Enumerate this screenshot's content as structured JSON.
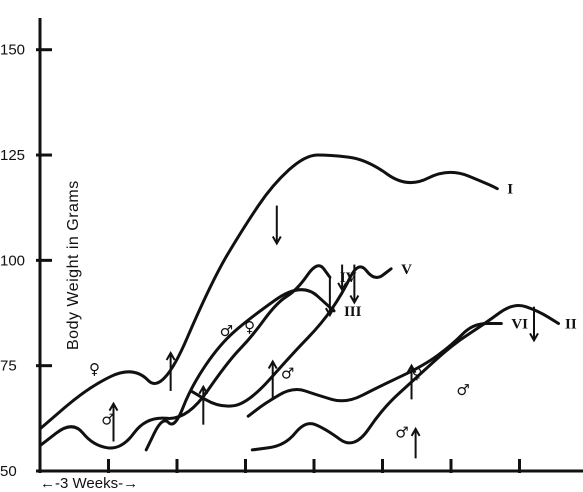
{
  "chart_data": {
    "type": "line",
    "title": "",
    "ylabel": "Body Weight in Grams",
    "xlabel": "←-3 Weeks-→",
    "ylim": [
      50,
      150
    ],
    "yticks": [
      "50",
      "75",
      "100",
      "125",
      "150"
    ],
    "x_unit_weeks": 3,
    "x_period_count": 8,
    "grid": false,
    "ink_color": "#111111",
    "series": [
      {
        "name": "I",
        "x": [
          0,
          1.2,
          2.3,
          3.0,
          4.2,
          5.0,
          5.7,
          6.5,
          7.1,
          8.0,
          9.0,
          10.0,
          11.0,
          11.2
        ],
        "y": [
          60,
          70,
          75,
          68,
          95,
          108,
          118,
          125,
          125,
          124,
          117,
          122,
          118,
          117
        ],
        "trim": 10
      },
      {
        "name": "IV",
        "x": [
          0,
          0.8,
          1.3,
          2.0,
          2.6,
          3.6,
          4.6,
          5.2,
          5.8,
          6.3,
          6.8,
          7.1
        ],
        "y": [
          56,
          62,
          56,
          55,
          63,
          62,
          76,
          82,
          90,
          93,
          100,
          96
        ]
      },
      {
        "name": "III",
        "x": [
          2.6,
          3.0,
          3.3,
          3.7,
          4.4,
          5.1,
          6.4,
          7.2
        ],
        "y": [
          55,
          63,
          60,
          70,
          80,
          86,
          95,
          88
        ]
      },
      {
        "name": "V",
        "x": [
          3.7,
          4.4,
          5.1,
          6.2,
          6.9,
          7.4,
          7.8,
          8.2,
          8.6
        ],
        "y": [
          69,
          65,
          66,
          78,
          85,
          92,
          100,
          95,
          98
        ]
      },
      {
        "name": "VI",
        "x": [
          5.1,
          5.5,
          6.2,
          6.8,
          7.5,
          8.3,
          9.4,
          10.1,
          10.6,
          11.3
        ],
        "y": [
          63,
          66,
          70,
          68,
          66,
          70,
          75,
          80,
          85,
          85
        ]
      },
      {
        "name": "II",
        "x": [
          5.2,
          6.0,
          6.5,
          7.0,
          7.7,
          8.4,
          9.2,
          10.1,
          10.9,
          11.6,
          12.2,
          12.7
        ],
        "y": [
          55,
          56,
          62,
          60,
          55,
          65,
          72,
          80,
          85,
          90,
          88,
          85
        ]
      }
    ],
    "sex_marks": [
      {
        "symbol": "♀",
        "x": 1.2,
        "y": 73
      },
      {
        "symbol": "♂",
        "x": 1.5,
        "y": 61
      },
      {
        "symbol": "♂",
        "x": 4.4,
        "y": 82
      },
      {
        "symbol": "♀",
        "x": 5.0,
        "y": 83
      },
      {
        "symbol": "♂",
        "x": 5.9,
        "y": 72
      },
      {
        "symbol": "♀",
        "x": 9.1,
        "y": 72
      },
      {
        "symbol": "♂",
        "x": 8.7,
        "y": 58
      },
      {
        "symbol": "♂",
        "x": 10.2,
        "y": 68
      }
    ],
    "arrows": [
      {
        "x": 1.8,
        "y_from": 57,
        "y_to": 66,
        "dir": "up"
      },
      {
        "x": 3.2,
        "y_from": 69,
        "y_to": 78,
        "dir": "up"
      },
      {
        "x": 4.0,
        "y_from": 61,
        "y_to": 70,
        "dir": "up"
      },
      {
        "x": 5.8,
        "y_from": 113,
        "y_to": 104,
        "dir": "down"
      },
      {
        "x": 5.7,
        "y_from": 67,
        "y_to": 76,
        "dir": "up"
      },
      {
        "x": 7.1,
        "y_from": 96,
        "y_to": 87,
        "dir": "down"
      },
      {
        "x": 7.7,
        "y_from": 99,
        "y_to": 90,
        "dir": "down"
      },
      {
        "x": 7.4,
        "y_from": 99,
        "y_to": 93,
        "dir": "down"
      },
      {
        "x": 9.1,
        "y_from": 67,
        "y_to": 75,
        "dir": "up"
      },
      {
        "x": 9.2,
        "y_from": 53,
        "y_to": 60,
        "dir": "up"
      },
      {
        "x": 12.1,
        "y_from": 89,
        "y_to": 81,
        "dir": "down"
      }
    ]
  }
}
